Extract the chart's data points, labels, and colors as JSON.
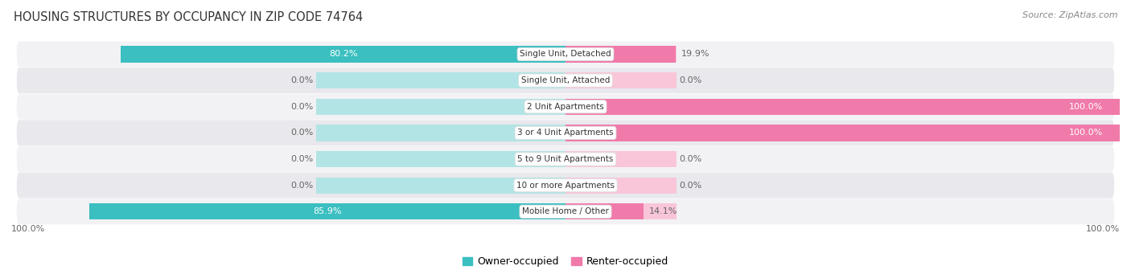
{
  "title": "HOUSING STRUCTURES BY OCCUPANCY IN ZIP CODE 74764",
  "source": "Source: ZipAtlas.com",
  "categories": [
    "Single Unit, Detached",
    "Single Unit, Attached",
    "2 Unit Apartments",
    "3 or 4 Unit Apartments",
    "5 to 9 Unit Apartments",
    "10 or more Apartments",
    "Mobile Home / Other"
  ],
  "owner_pct": [
    80.2,
    0.0,
    0.0,
    0.0,
    0.0,
    0.0,
    85.9
  ],
  "renter_pct": [
    19.9,
    0.0,
    100.0,
    100.0,
    0.0,
    0.0,
    14.1
  ],
  "owner_color": "#3bbfc0",
  "renter_color": "#f07aaa",
  "owner_bg_color": "#b2e4e5",
  "renter_bg_color": "#f9c6d9",
  "owner_label": "Owner-occupied",
  "renter_label": "Renter-occupied",
  "row_bg_light": "#f2f2f5",
  "row_bg_dark": "#e8e8ed",
  "label_color": "#666666",
  "title_color": "#333333",
  "source_color": "#888888",
  "bar_height": 0.62,
  "figsize": [
    14.06,
    3.41
  ],
  "dpi": 100
}
